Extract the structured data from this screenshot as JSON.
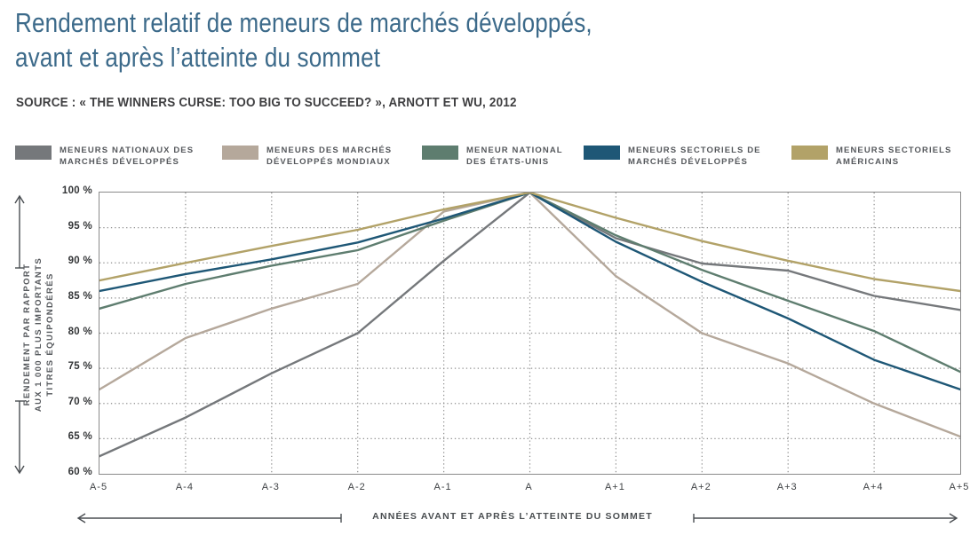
{
  "title": {
    "line1": "Rendement relatif de meneurs de marchés développés,",
    "line2": "avant et après l’atteinte du sommet"
  },
  "source": "SOURCE : « THE WINNERS CURSE: TOO BIG TO SUCCEED? », ARNOTT ET WU, 2012",
  "legend": {
    "items": [
      {
        "label_line1": "MENEURS NATIONAUX DES",
        "label_line2": "MARCHÉS DÉVELOPPÉS",
        "color": "#75787b"
      },
      {
        "label_line1": "MENEURS DES MARCHÉS",
        "label_line2": "DÉVELOPPÉS MONDIAUX",
        "color": "#b5a89b"
      },
      {
        "label_line1": "MENEUR NATIONAL",
        "label_line2": "DES ÉTATS-UNIS",
        "color": "#5e7d6f"
      },
      {
        "label_line1": "MENEURS SECTORIELS DE",
        "label_line2": "MARCHÉS DÉVELOPPÉS",
        "color": "#1e5776"
      },
      {
        "label_line1": "MENEURS SECTORIELS",
        "label_line2": "AMÉRICAINS",
        "color": "#b2a268"
      }
    ]
  },
  "chart_data": {
    "type": "line",
    "title": "Rendement relatif de meneurs de marchés développés, avant et après l’atteinte du sommet",
    "xlabel": "ANNÉES AVANT ET APRÈS L’ATTEINTE DU SOMMET",
    "ylabel": "RENDEMENT PAR RAPPORT AUX 1 000 PLUS IMPORTANTS TITRES ÉQUIPONDÉRÉS",
    "ylabel_lines": [
      "RENDEMENT PAR RAPPORT",
      "AUX 1 000 PLUS IMPORTANTS",
      "TITRES ÉQUIPONDÉRÉS"
    ],
    "ylim": [
      60,
      100
    ],
    "ytick_values": [
      100,
      95,
      90,
      85,
      80,
      75,
      70,
      65,
      60
    ],
    "ytick_labels": [
      "100 %",
      "95 %",
      "90 %",
      "85 %",
      "80 %",
      "75 %",
      "70 %",
      "65 %",
      "60 %"
    ],
    "categories": [
      "A-5",
      "A-4",
      "A-3",
      "A-2",
      "A-1",
      "A",
      "A+1",
      "A+2",
      "A+3",
      "A+4",
      "A+5"
    ],
    "grid": true,
    "legend_position": "top",
    "series": [
      {
        "name": "MENEURS NATIONAUX DES MARCHÉS DÉVELOPPÉS",
        "color": "#75787b",
        "values": [
          62.5,
          68.0,
          74.3,
          80.0,
          90.3,
          100,
          93.5,
          89.9,
          88.9,
          85.3,
          83.3
        ]
      },
      {
        "name": "MENEURS DES MARCHÉS DÉVELOPPÉS MONDIAUX",
        "color": "#b5a89b",
        "values": [
          72.0,
          79.3,
          83.5,
          87.0,
          97.3,
          100,
          88.1,
          80.0,
          75.7,
          70.0,
          65.3
        ]
      },
      {
        "name": "MENEUR NATIONAL DES ÉTATS-UNIS",
        "color": "#5e7d6f",
        "values": [
          83.5,
          87.0,
          89.6,
          91.8,
          96.0,
          100,
          93.9,
          89.0,
          84.6,
          80.3,
          74.5
        ]
      },
      {
        "name": "MENEURS SECTORIELS DE MARCHÉS DÉVELOPPÉS",
        "color": "#1e5776",
        "values": [
          86.0,
          88.4,
          90.5,
          92.9,
          96.3,
          100,
          93.0,
          87.3,
          82.1,
          76.2,
          72.0
        ]
      },
      {
        "name": "MENEURS SECTORIELS AMÉRICAINS",
        "color": "#b2a268",
        "values": [
          87.5,
          90.0,
          92.4,
          94.7,
          97.6,
          100,
          96.4,
          93.1,
          90.3,
          87.7,
          86.0
        ]
      }
    ]
  }
}
